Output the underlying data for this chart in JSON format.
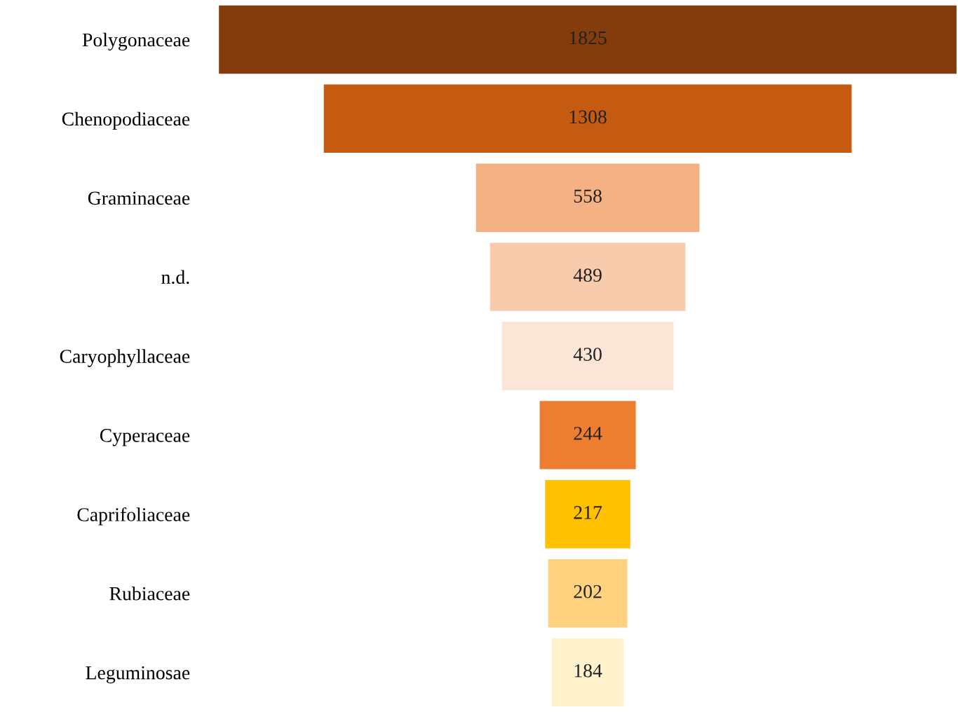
{
  "chart_data": {
    "type": "other",
    "categories": [
      "Polygonaceae",
      "Chenopodiaceae",
      "Graminaceae",
      "n.d.",
      "Caryophyllaceae",
      "Cyperaceae",
      "Caprifoliaceae",
      "Rubiaceae",
      "Leguminosae"
    ],
    "values": [
      1825,
      1308,
      558,
      489,
      430,
      244,
      217,
      202,
      184
    ],
    "colors": [
      "#843c0c",
      "#c55a11",
      "#f4b183",
      "#f8cbad",
      "#fbe5d6",
      "#ed7d31",
      "#ffc000",
      "#ffd280",
      "#fff2cc"
    ],
    "data_labels": true
  }
}
